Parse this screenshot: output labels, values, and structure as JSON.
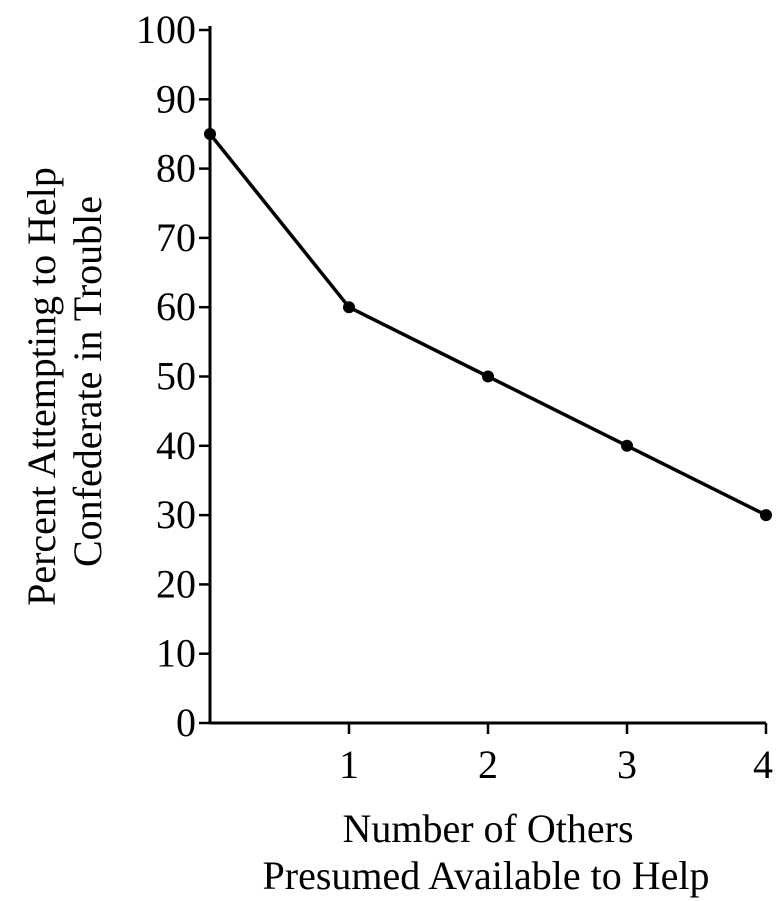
{
  "chart_data": {
    "type": "line",
    "title": "",
    "x": [
      0,
      1,
      2,
      3,
      4
    ],
    "series": [
      {
        "values": [
          85,
          60,
          50,
          40,
          30
        ]
      }
    ],
    "xlabel": [
      "Number of Others",
      "Presumed Available to Help"
    ],
    "ylabel": [
      "Percent Attempting to Help",
      "Confederate in Trouble"
    ],
    "xlim": [
      0,
      4
    ],
    "ylim": [
      0,
      100
    ],
    "xticks": [
      1,
      2,
      3,
      4
    ],
    "xtick_labels": [
      "1",
      "2",
      "3",
      "4"
    ],
    "yticks": [
      0,
      10,
      20,
      30,
      40,
      50,
      60,
      70,
      80,
      90,
      100
    ],
    "ytick_labels": [
      "0",
      "10",
      "20",
      "30",
      "40",
      "50",
      "60",
      "70",
      "80",
      "90",
      "100"
    ],
    "grid": false,
    "legend": "none",
    "colors": {
      "line": "#000000",
      "axis": "#000000",
      "background": "#ffffff"
    }
  }
}
